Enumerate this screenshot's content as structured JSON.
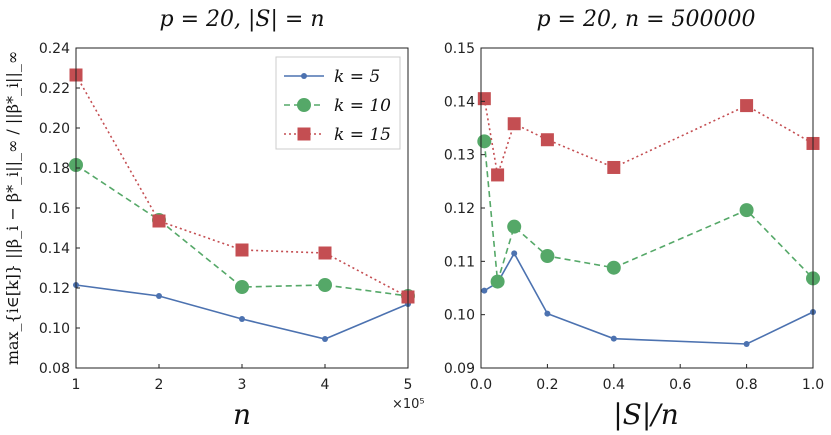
{
  "chart_data": [
    {
      "type": "line",
      "title": "p = 20, |S| = n",
      "xlabel": "n",
      "ylabel": "max_{i∈[k]} ||β_i − β*_i||_∞ / ||β*_i||_∞",
      "x_exponent_label": "×10⁵",
      "xlim": [
        1,
        5
      ],
      "ylim": [
        0.08,
        0.24
      ],
      "xticks": [
        1,
        2,
        3,
        4,
        5
      ],
      "xtick_labels": [
        "1",
        "2",
        "3",
        "4",
        "5"
      ],
      "yticks": [
        0.08,
        0.1,
        0.12,
        0.14,
        0.16,
        0.18,
        0.2,
        0.22,
        0.24
      ],
      "ytick_labels": [
        "0.08",
        "0.10",
        "0.12",
        "0.14",
        "0.16",
        "0.18",
        "0.20",
        "0.22",
        "0.24"
      ],
      "legend_position": "top-right",
      "x": [
        1,
        2,
        3,
        4,
        5
      ],
      "series": [
        {
          "name": "k = 5",
          "color": "#4c72b0",
          "marker": "dot",
          "style": "solid",
          "values": [
            0.1215,
            0.116,
            0.1045,
            0.0945,
            0.112
          ]
        },
        {
          "name": "k = 10",
          "color": "#55a868",
          "marker": "circle",
          "style": "dashed",
          "values": [
            0.1815,
            0.154,
            0.1205,
            0.1215,
            0.116
          ]
        },
        {
          "name": "k = 15",
          "color": "#c44e52",
          "marker": "square",
          "style": "dotdash",
          "values": [
            0.2265,
            0.1535,
            0.139,
            0.1375,
            0.1155
          ]
        }
      ]
    },
    {
      "type": "line",
      "title": "p = 20, n = 500000",
      "xlabel": "|S|/n",
      "ylabel": "",
      "xlim": [
        0,
        1.0
      ],
      "ylim": [
        0.09,
        0.15
      ],
      "xticks": [
        0,
        0.2,
        0.4,
        0.6,
        0.8,
        1.0
      ],
      "xtick_labels": [
        "0.0",
        "0.2",
        "0.4",
        "0.6",
        "0.8",
        "1.0"
      ],
      "yticks": [
        0.09,
        0.1,
        0.11,
        0.12,
        0.13,
        0.14,
        0.15
      ],
      "ytick_labels": [
        "0.09",
        "0.10",
        "0.11",
        "0.12",
        "0.13",
        "0.14",
        "0.15"
      ],
      "x": [
        0.01,
        0.05,
        0.1,
        0.2,
        0.4,
        0.8,
        1.0
      ],
      "series": [
        {
          "name": "k = 5",
          "color": "#4c72b0",
          "marker": "dot",
          "style": "solid",
          "values": [
            0.1045,
            0.106,
            0.1115,
            0.1002,
            0.0955,
            0.0945,
            0.1005
          ]
        },
        {
          "name": "k = 10",
          "color": "#55a868",
          "marker": "circle",
          "style": "dashed",
          "values": [
            0.1325,
            0.1062,
            0.1165,
            0.111,
            0.1088,
            0.1196,
            0.1068
          ]
        },
        {
          "name": "k = 15",
          "color": "#c44e52",
          "marker": "square",
          "style": "dotdash",
          "values": [
            0.1405,
            0.1262,
            0.1358,
            0.1328,
            0.1276,
            0.1392,
            0.1321
          ]
        }
      ]
    }
  ]
}
